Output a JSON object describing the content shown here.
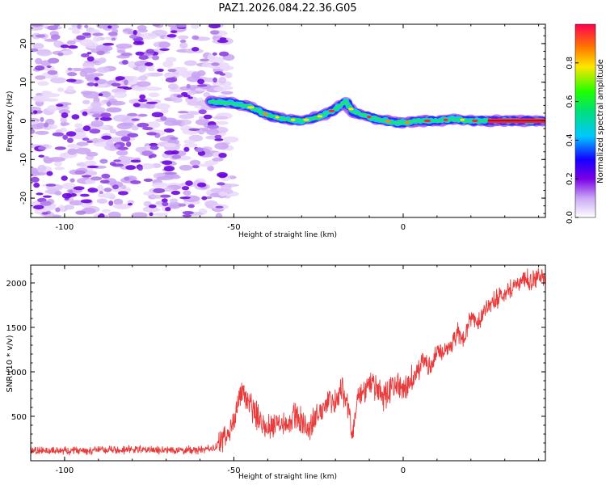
{
  "figure": {
    "title": "PAZ1.2026.084.22.36.G05"
  },
  "colors": {
    "snr_line": "#e83a3a",
    "axis": "#000000"
  },
  "chart_data": [
    {
      "type": "heatmap",
      "name": "spectrogram",
      "xlabel": "Height of straight line (km)",
      "ylabel": "Frequency (Hz)",
      "xlim": [
        -110,
        42
      ],
      "ylim": [
        -25,
        25
      ],
      "xticks": [
        -100,
        -50,
        0
      ],
      "yticks": [
        -20,
        -10,
        0,
        10,
        20
      ],
      "xtick_labels": [
        "-100",
        "-50",
        "0"
      ],
      "ytick_labels": [
        "-20",
        "-10",
        "0",
        "10",
        "20"
      ],
      "noise_region_x": [
        -110,
        -52
      ],
      "signal_track": {
        "x": [
          -57,
          -50,
          -45,
          -40,
          -35,
          -30,
          -25,
          -20,
          -17,
          -15,
          -12,
          -8,
          -5,
          -2,
          0,
          5,
          10,
          15,
          20,
          25,
          30,
          35,
          40,
          42
        ],
        "freq_hz": [
          5,
          4.5,
          3.5,
          1.5,
          0.5,
          0,
          1,
          3,
          5,
          2.5,
          1.5,
          0.5,
          0,
          -0.5,
          -0.5,
          0,
          0,
          0.5,
          0,
          0,
          0,
          0,
          0,
          0
        ]
      },
      "colorbar": {
        "label": "Normalized spectral amplitude",
        "range": [
          0.0,
          1.0
        ],
        "ticks": [
          0.0,
          0.2,
          0.4,
          0.6,
          0.8
        ],
        "tick_labels": [
          "0.0",
          "0.2",
          "0.4",
          "0.6",
          "0.8"
        ]
      }
    },
    {
      "type": "line",
      "name": "snr",
      "xlabel": "Height of straight line (km)",
      "ylabel": "SNR (10 * v/v)",
      "xlim": [
        -110,
        42
      ],
      "ylim": [
        0,
        2200
      ],
      "xticks": [
        -100,
        -50,
        0
      ],
      "yticks": [
        500,
        1000,
        1500,
        2000
      ],
      "xtick_labels": [
        "-100",
        "-50",
        "0"
      ],
      "ytick_labels": [
        "500",
        "1000",
        "1500",
        "2000"
      ],
      "series": [
        {
          "name": "SNR",
          "x": [
            -110,
            -100,
            -90,
            -80,
            -70,
            -60,
            -55,
            -52,
            -50,
            -48,
            -46,
            -44,
            -42,
            -40,
            -38,
            -36,
            -34,
            -32,
            -30,
            -28,
            -26,
            -24,
            -22,
            -20,
            -18,
            -16,
            -15,
            -14,
            -12,
            -10,
            -8,
            -6,
            -4,
            -2,
            0,
            2,
            4,
            6,
            8,
            10,
            12,
            14,
            16,
            18,
            20,
            22,
            24,
            26,
            28,
            30,
            32,
            34,
            36,
            38,
            40,
            42
          ],
          "y": [
            110,
            115,
            120,
            125,
            120,
            120,
            150,
            280,
            440,
            800,
            660,
            560,
            450,
            380,
            420,
            470,
            380,
            520,
            450,
            360,
            470,
            560,
            720,
            650,
            800,
            580,
            250,
            650,
            740,
            850,
            820,
            700,
            790,
            880,
            760,
            900,
            980,
            1130,
            1050,
            1240,
            1200,
            1300,
            1440,
            1370,
            1620,
            1560,
            1700,
            1750,
            1830,
            1900,
            1950,
            2000,
            2050,
            2020,
            2080,
            2000
          ]
        }
      ]
    }
  ]
}
